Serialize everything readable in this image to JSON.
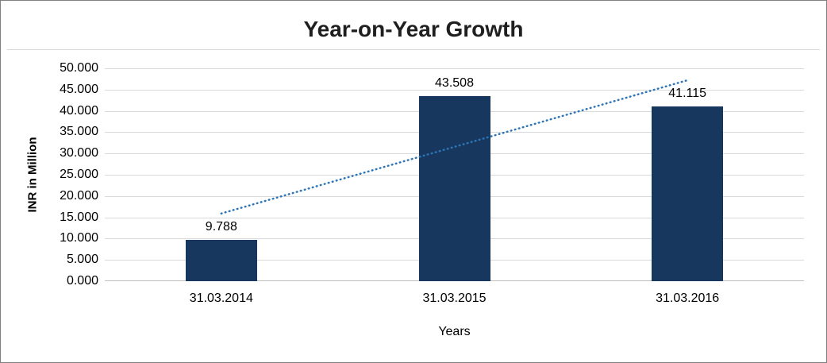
{
  "chart_data": {
    "type": "bar",
    "title": "Year-on-Year Growth",
    "xlabel": "Years",
    "ylabel": "INR in Million",
    "categories": [
      "31.03.2014",
      "31.03.2015",
      "31.03.2016"
    ],
    "values": [
      9.788,
      43.508,
      41.115
    ],
    "value_labels": [
      "9.788",
      "43.508",
      "41.115"
    ],
    "ylim": [
      0,
      50
    ],
    "ytick_step": 5,
    "ytick_labels": [
      "0.000",
      "5.000",
      "10.000",
      "15.000",
      "20.000",
      "25.000",
      "30.000",
      "35.000",
      "40.000",
      "45.000",
      "50.000"
    ],
    "grid": true,
    "legend": "none",
    "bar_color": "#17375E",
    "gridline_color": "#d9d9d9",
    "axis_line_color": "#bfbfbf",
    "trendline": {
      "style": "dotted",
      "color": "#2E75B6",
      "start_value": 15.9,
      "end_value": 47.2
    }
  }
}
